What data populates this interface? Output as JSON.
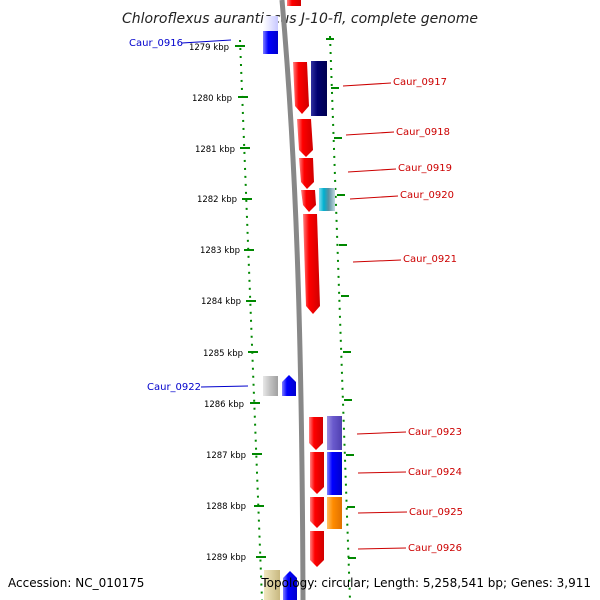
{
  "title": "Chloroflexus aurantiacus J-10-fl, complete genome",
  "footer": {
    "accession": "Accession: NC_010175",
    "summary": "Topology: circular; Length: 5,258,541 bp; Genes: 3,911"
  },
  "ticks": [
    {
      "label": "1279 kbp"
    },
    {
      "label": "1280 kbp"
    },
    {
      "label": "1281 kbp"
    },
    {
      "label": "1282 kbp"
    },
    {
      "label": "1283 kbp"
    },
    {
      "label": "1284 kbp"
    },
    {
      "label": "1285 kbp"
    },
    {
      "label": "1286 kbp"
    },
    {
      "label": "1287 kbp"
    },
    {
      "label": "1288 kbp"
    },
    {
      "label": "1289 kbp"
    }
  ],
  "genes": [
    {
      "label": "Caur_0916",
      "strand": "minus",
      "color": "#0000cc"
    },
    {
      "label": "Caur_0917",
      "strand": "plus",
      "color": "#cc0000"
    },
    {
      "label": "Caur_0918",
      "strand": "plus",
      "color": "#cc0000"
    },
    {
      "label": "Caur_0919",
      "strand": "plus",
      "color": "#cc0000"
    },
    {
      "label": "Caur_0920",
      "strand": "plus",
      "color": "#cc0000"
    },
    {
      "label": "Caur_0921",
      "strand": "plus",
      "color": "#cc0000"
    },
    {
      "label": "Caur_0922",
      "strand": "minus",
      "color": "#0000cc"
    },
    {
      "label": "Caur_0923",
      "strand": "plus",
      "color": "#cc0000"
    },
    {
      "label": "Caur_0924",
      "strand": "plus",
      "color": "#cc0000"
    },
    {
      "label": "Caur_0925",
      "strand": "plus",
      "color": "#cc0000"
    },
    {
      "label": "Caur_0926",
      "strand": "plus",
      "color": "#cc0000"
    }
  ],
  "colors": {
    "forward_gene": "#ff0000",
    "reverse_gene": "#0000ff",
    "backbone": "#888888",
    "tick": "#008800"
  }
}
